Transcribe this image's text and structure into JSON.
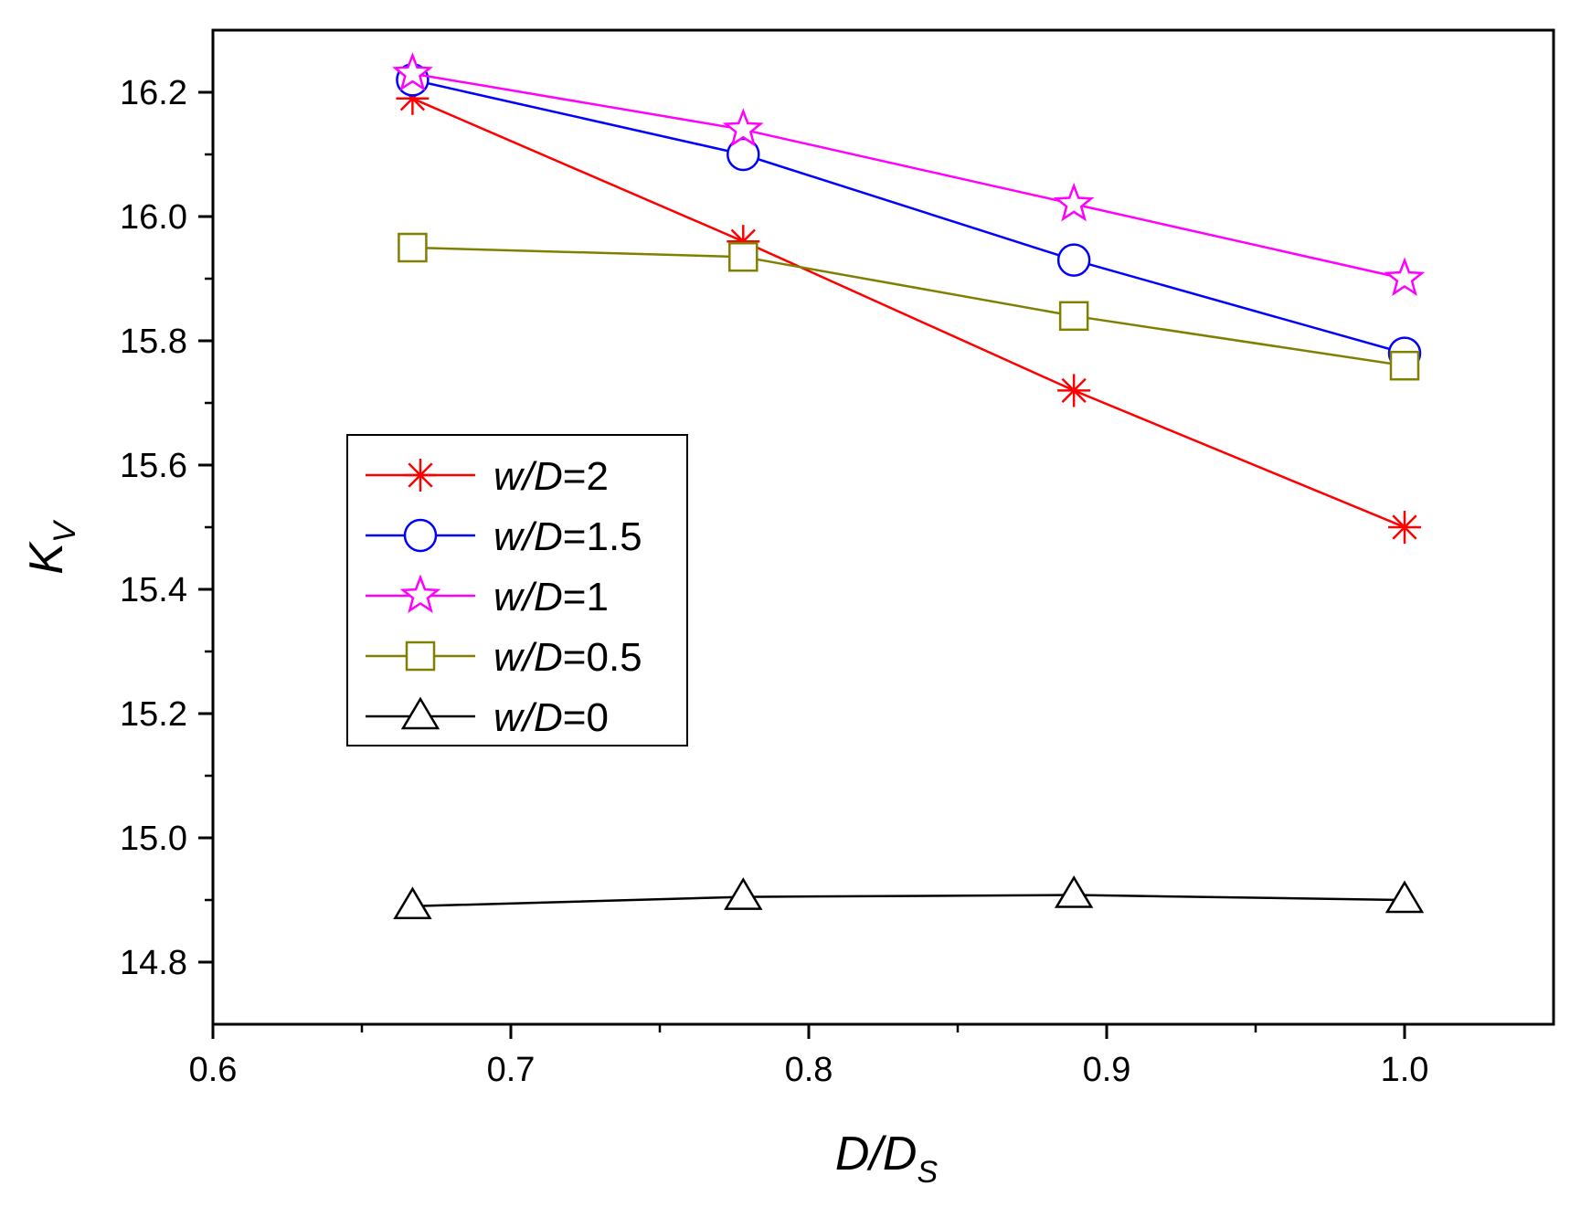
{
  "chart_data": {
    "type": "line",
    "title": "",
    "xlabel": {
      "main": "D/D",
      "sub": "S"
    },
    "ylabel": {
      "main": "K",
      "sub": "V"
    },
    "xlim": [
      0.6,
      1.05
    ],
    "ylim": [
      14.7,
      16.3
    ],
    "xticks": [
      0.6,
      0.7,
      0.8,
      0.9,
      1.0
    ],
    "xtick_labels": [
      "0.6",
      "0.7",
      "0.8",
      "0.9",
      "1.0"
    ],
    "yticks": [
      14.8,
      15.0,
      15.2,
      15.4,
      15.6,
      15.8,
      16.0,
      16.2
    ],
    "ytick_labels": [
      "14.8",
      "15.0",
      "15.2",
      "15.4",
      "15.6",
      "15.8",
      "16.0",
      "16.2"
    ],
    "grid": false,
    "legend_position": "center-left",
    "x": [
      0.667,
      0.778,
      0.889,
      1.0
    ],
    "series": [
      {
        "name": "w/D=2",
        "prefix": "w/D",
        "suffix": "=2",
        "color": "#ff0000",
        "marker": "asterisk",
        "values": [
          16.19,
          15.96,
          15.72,
          15.5
        ]
      },
      {
        "name": "w/D=1.5",
        "prefix": "w/D",
        "suffix": "=1.5",
        "color": "#0000ff",
        "marker": "circle",
        "values": [
          16.22,
          16.1,
          15.93,
          15.78
        ]
      },
      {
        "name": "w/D=1",
        "prefix": "w/D",
        "suffix": "=1",
        "color": "#ff00ff",
        "marker": "star",
        "values": [
          16.23,
          16.14,
          16.02,
          15.9
        ]
      },
      {
        "name": "w/D=0.5",
        "prefix": "w/D",
        "suffix": "=0.5",
        "color": "#808000",
        "marker": "square",
        "values": [
          15.95,
          15.935,
          15.84,
          15.76
        ]
      },
      {
        "name": "w/D=0",
        "prefix": "w/D",
        "suffix": "=0",
        "color": "#000000",
        "marker": "triangle",
        "values": [
          14.89,
          14.905,
          14.908,
          14.9
        ]
      }
    ]
  }
}
